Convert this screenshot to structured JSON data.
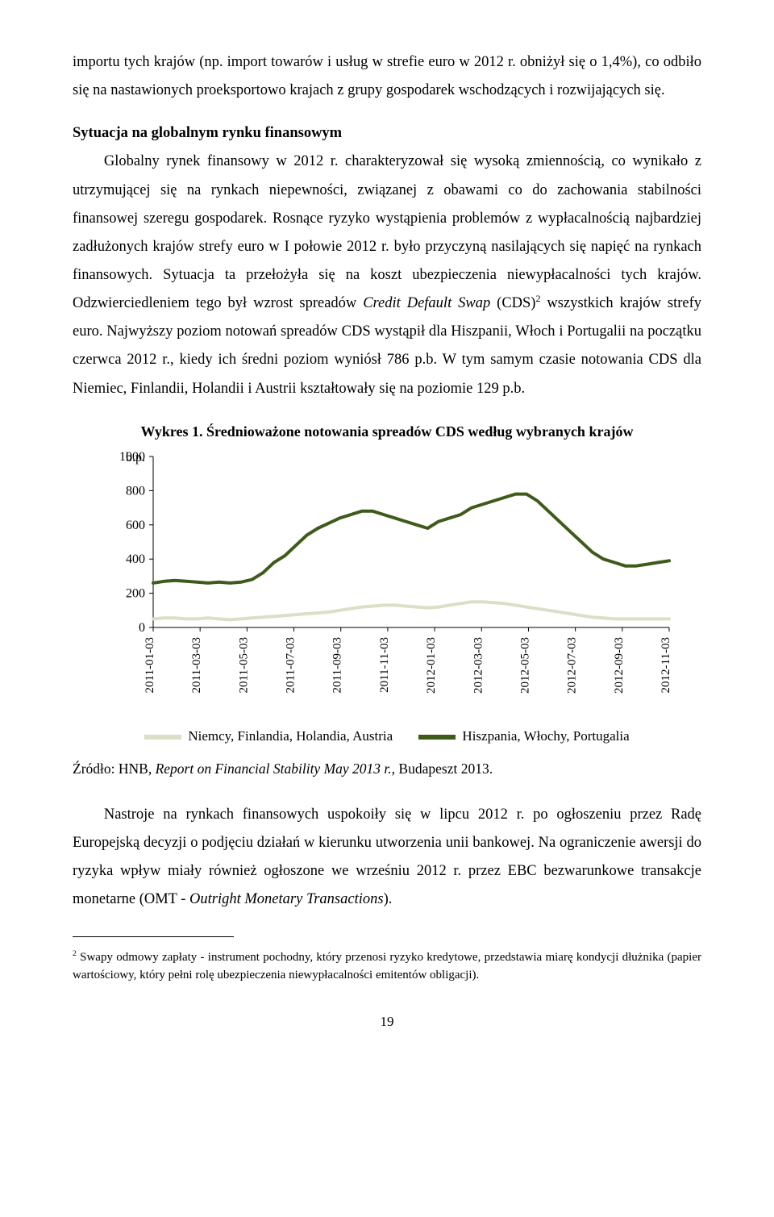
{
  "para1_a": "importu tych krajów (np. import towarów i usług w strefie euro w 2012 r. obniżył się o 1,4%), co odbiło się na nastawionych proeksportowo krajach z grupy gospodarek wschodzących i rozwijających się.",
  "heading": "Sytuacja na globalnym rynku finansowym",
  "para2": "Globalny rynek finansowy w 2012 r. charakteryzował się wysoką zmiennością, co wynikało z utrzymującej się na rynkach niepewności, związanej z obawami co do zachowania stabilności finansowej szeregu gospodarek. Rosnące ryzyko wystąpienia problemów z wypłacalnością najbardziej zadłużonych krajów strefy euro w I połowie 2012 r. było przyczyną nasilających się napięć na rynkach finansowych. Sytuacja ta przełożyła się na koszt ubezpieczenia niewypłacalności tych krajów. Odzwierciedleniem tego był wzrost spreadów ",
  "para2_i": "Credit Default Swap",
  "para2_b": " (CDS)",
  "para2_sup": "2",
  "para2_c": " wszystkich krajów strefy euro. Najwyższy poziom notowań spreadów CDS wystąpił dla Hiszpanii, Włoch i Portugalii na początku czerwca 2012 r., kiedy ich średni poziom wyniósł 786 p.b. W tym samym czasie notowania CDS dla Niemiec, Finlandii, Holandii i Austrii kształtowały się na poziomie 129 p.b.",
  "chart": {
    "title": "Wykres 1. Średnioważone notowania spreadów CDS według wybranych krajów",
    "y_label": "b.p.",
    "y_ticks": [
      0,
      200,
      400,
      600,
      800,
      1000
    ],
    "x_labels": [
      "2011-01-03",
      "2011-03-03",
      "2011-05-03",
      "2011-07-03",
      "2011-09-03",
      "2011-11-03",
      "2012-01-03",
      "2012-03-03",
      "2012-05-03",
      "2012-07-03",
      "2012-09-03",
      "2012-11-03"
    ],
    "series": [
      {
        "name": "Niemcy, Finlandia, Holandia, Austria",
        "color": "#d9e0c6",
        "width": 4,
        "values": [
          50,
          55,
          55,
          50,
          50,
          55,
          50,
          45,
          50,
          55,
          60,
          65,
          70,
          75,
          80,
          85,
          90,
          100,
          110,
          120,
          125,
          130,
          130,
          125,
          120,
          115,
          120,
          130,
          140,
          150,
          150,
          145,
          140,
          130,
          120,
          110,
          100,
          90,
          80,
          70,
          60,
          55,
          50,
          50,
          50,
          50,
          50,
          50
        ]
      },
      {
        "name": "Hiszpania, Włochy, Portugalia",
        "color": "#3f5b1a",
        "width": 4,
        "values": [
          260,
          270,
          275,
          270,
          265,
          260,
          265,
          260,
          265,
          280,
          320,
          380,
          420,
          480,
          540,
          580,
          610,
          640,
          660,
          680,
          680,
          660,
          640,
          620,
          600,
          580,
          620,
          640,
          660,
          700,
          720,
          740,
          760,
          780,
          780,
          740,
          680,
          620,
          560,
          500,
          440,
          400,
          380,
          360,
          360,
          370,
          380,
          390
        ]
      }
    ],
    "y_min": 0,
    "y_max": 1000,
    "legend": [
      {
        "swatch": "#d9e0c6",
        "label": "Niemcy, Finlandia, Holandia, Austria"
      },
      {
        "swatch": "#3f5b1a",
        "label": "Hiszpania, Włochy, Portugalia"
      }
    ]
  },
  "source_a": "Źródło: ",
  "source_b": "HNB, ",
  "source_i": "Report on Financial Stability May 2013 r.",
  "source_c": ", Budapeszt 2013.",
  "para3_a": "Nastroje na rynkach finansowych uspokoiły się w lipcu 2012 r. po ogłoszeniu przez Radę Europejską decyzji o podjęciu działań w kierunku utworzenia unii bankowej. Na ograniczenie awersji do ryzyka wpływ miały również ogłoszone we wrześniu 2012 r. przez EBC bezwarunkowe transakcje monetarne (OMT - ",
  "para3_i": "Outright Monetary Transactions",
  "para3_b": ").",
  "footnote_sup": "2",
  "footnote": " Swapy odmowy zapłaty - instrument pochodny, który przenosi ryzyko kredytowe, przedstawia miarę kondycji dłużnika (papier wartościowy, który pełni rolę ubezpieczenia niewypłacalności emitentów obligacji).",
  "pagenum": "19"
}
